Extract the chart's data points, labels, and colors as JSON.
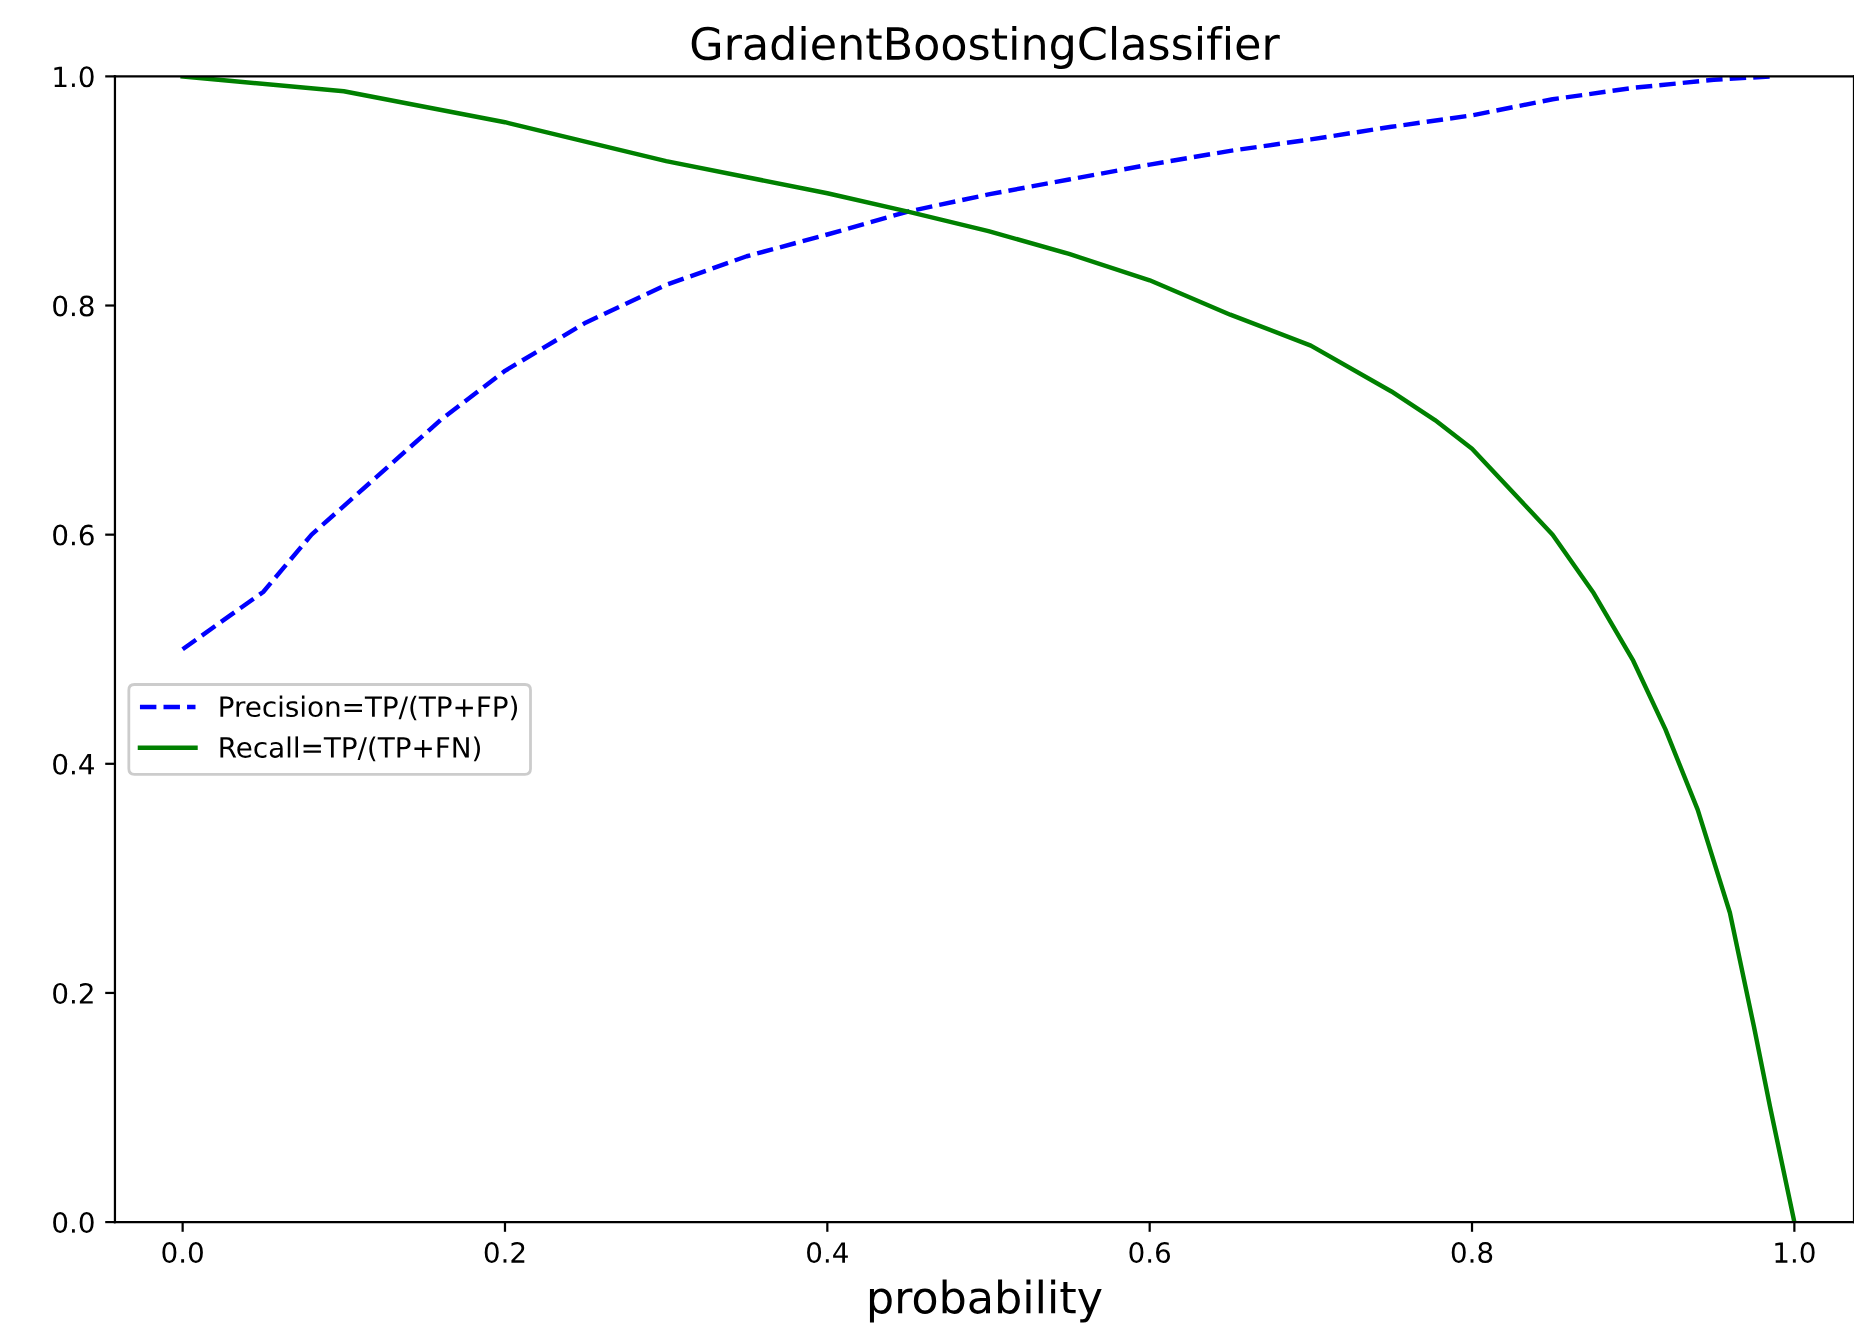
{
  "chart_data": {
    "type": "line",
    "title": "GradientBoostingClassifier",
    "xlabel": "probability",
    "xlim": [
      -0.042,
      1.037
    ],
    "xticks": [
      {
        "value": 0,
        "label": "0.0"
      },
      0.2,
      0.4,
      0.6,
      0.8,
      {
        "value": 1,
        "label": "1.0"
      }
    ],
    "ylim": [
      0.0,
      1.0
    ],
    "yticks": [
      {
        "value": 0,
        "label": "0.0"
      },
      0.2,
      0.4,
      0.6,
      0.8,
      {
        "value": 1,
        "label": "1.0"
      }
    ],
    "legend": "left",
    "grid": false,
    "series": [
      {
        "name": "Precision=TP/(TP+FP)",
        "color": "#0000ff",
        "line_style": "dashed",
        "x": [
          0.0,
          0.05,
          0.08,
          0.12,
          0.16,
          0.2,
          0.25,
          0.3,
          0.35,
          0.4,
          0.45,
          0.5,
          0.55,
          0.6,
          0.65,
          0.7,
          0.75,
          0.8,
          0.85,
          0.9,
          0.95,
          0.985
        ],
        "values": [
          0.5,
          0.55,
          0.6,
          0.65,
          0.7,
          0.743,
          0.785,
          0.818,
          0.843,
          0.862,
          0.882,
          0.897,
          0.91,
          0.923,
          0.935,
          0.945,
          0.956,
          0.966,
          0.98,
          0.99,
          0.997,
          1.0
        ]
      },
      {
        "name": "Recall=TP/(TP+FN)",
        "color": "#008000",
        "line_style": "solid",
        "x": [
          0.0,
          0.1,
          0.2,
          0.3,
          0.4,
          0.45,
          0.5,
          0.55,
          0.6,
          0.65,
          0.7,
          0.75,
          0.777,
          0.8,
          0.85,
          0.875,
          0.9,
          0.92,
          0.94,
          0.96,
          0.975,
          0.985,
          1.0
        ],
        "values": [
          1.0,
          0.987,
          0.96,
          0.926,
          0.898,
          0.882,
          0.865,
          0.845,
          0.822,
          0.792,
          0.765,
          0.725,
          0.7,
          0.675,
          0.6,
          0.55,
          0.49,
          0.43,
          0.36,
          0.27,
          0.17,
          0.1,
          0.0
        ]
      }
    ]
  }
}
